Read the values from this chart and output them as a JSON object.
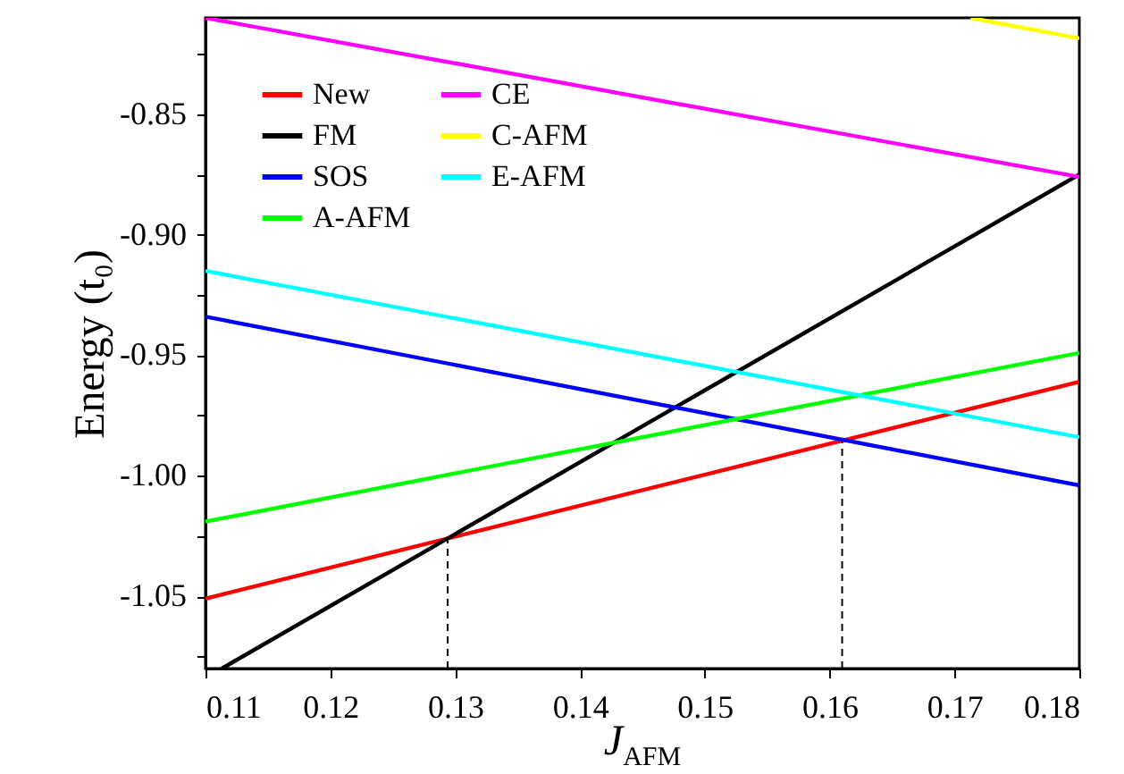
{
  "chart_data": {
    "type": "line",
    "xlabel": "J$_{AFM}$",
    "ylabel": "Energy (t₀)",
    "xlim": [
      0.11,
      0.18
    ],
    "ylim": [
      -1.08,
      -0.81
    ],
    "xticks": [
      0.11,
      0.12,
      0.13,
      0.14,
      0.15,
      0.16,
      0.17,
      0.18
    ],
    "yticks": [
      {
        "value": -0.825,
        "label": null
      },
      -0.85,
      {
        "value": -0.875,
        "label": null
      },
      {
        "value": -0.9,
        "label": "-0.90"
      },
      {
        "value": -0.925,
        "label": null
      },
      -0.95,
      {
        "value": -0.975,
        "label": null
      },
      {
        "value": -1.0,
        "label": "-1.00"
      },
      {
        "value": -1.025,
        "label": null
      },
      -1.05,
      {
        "value": -1.075,
        "label": null
      }
    ],
    "grid": false,
    "legend": "top left",
    "line_style": "solid",
    "marker": "none",
    "series": [
      {
        "name": "New",
        "color": "#ff0000",
        "x": [
          0.11,
          0.18
        ],
        "values": [
          -1.051,
          -0.961
        ]
      },
      {
        "name": "FM",
        "color": "#000000",
        "x": [
          0.1113,
          0.18
        ],
        "values": [
          -1.08,
          -0.875
        ]
      },
      {
        "name": "SOS",
        "color": "#0000ff",
        "x": [
          0.11,
          0.18
        ],
        "values": [
          -0.934,
          -1.004
        ]
      },
      {
        "name": "A-AFM",
        "color": "#00ff00",
        "x": [
          0.11,
          0.18
        ],
        "values": [
          -1.019,
          -0.949
        ]
      },
      {
        "name": "CE",
        "color": "#ff00ff",
        "x": [
          0.11,
          0.18
        ],
        "values": [
          -0.81,
          -0.876
        ]
      },
      {
        "name": "C-AFM",
        "color": "#ffff00",
        "x": [
          0.1713,
          0.18
        ],
        "values": [
          -0.81,
          -0.8185
        ]
      },
      {
        "name": "E-AFM",
        "color": "#00ffff",
        "x": [
          0.11,
          0.18
        ],
        "values": [
          -0.915,
          -0.984
        ]
      },
      {
        "color": "#000000",
        "line_style": "dashed",
        "x": [
          0.1294,
          0.1294
        ],
        "values": [
          -1.08,
          -1.027
        ]
      },
      {
        "color": "#000000",
        "line_style": "dashed",
        "x": [
          0.161,
          0.161
        ],
        "values": [
          -1.08,
          -0.986
        ]
      }
    ]
  }
}
